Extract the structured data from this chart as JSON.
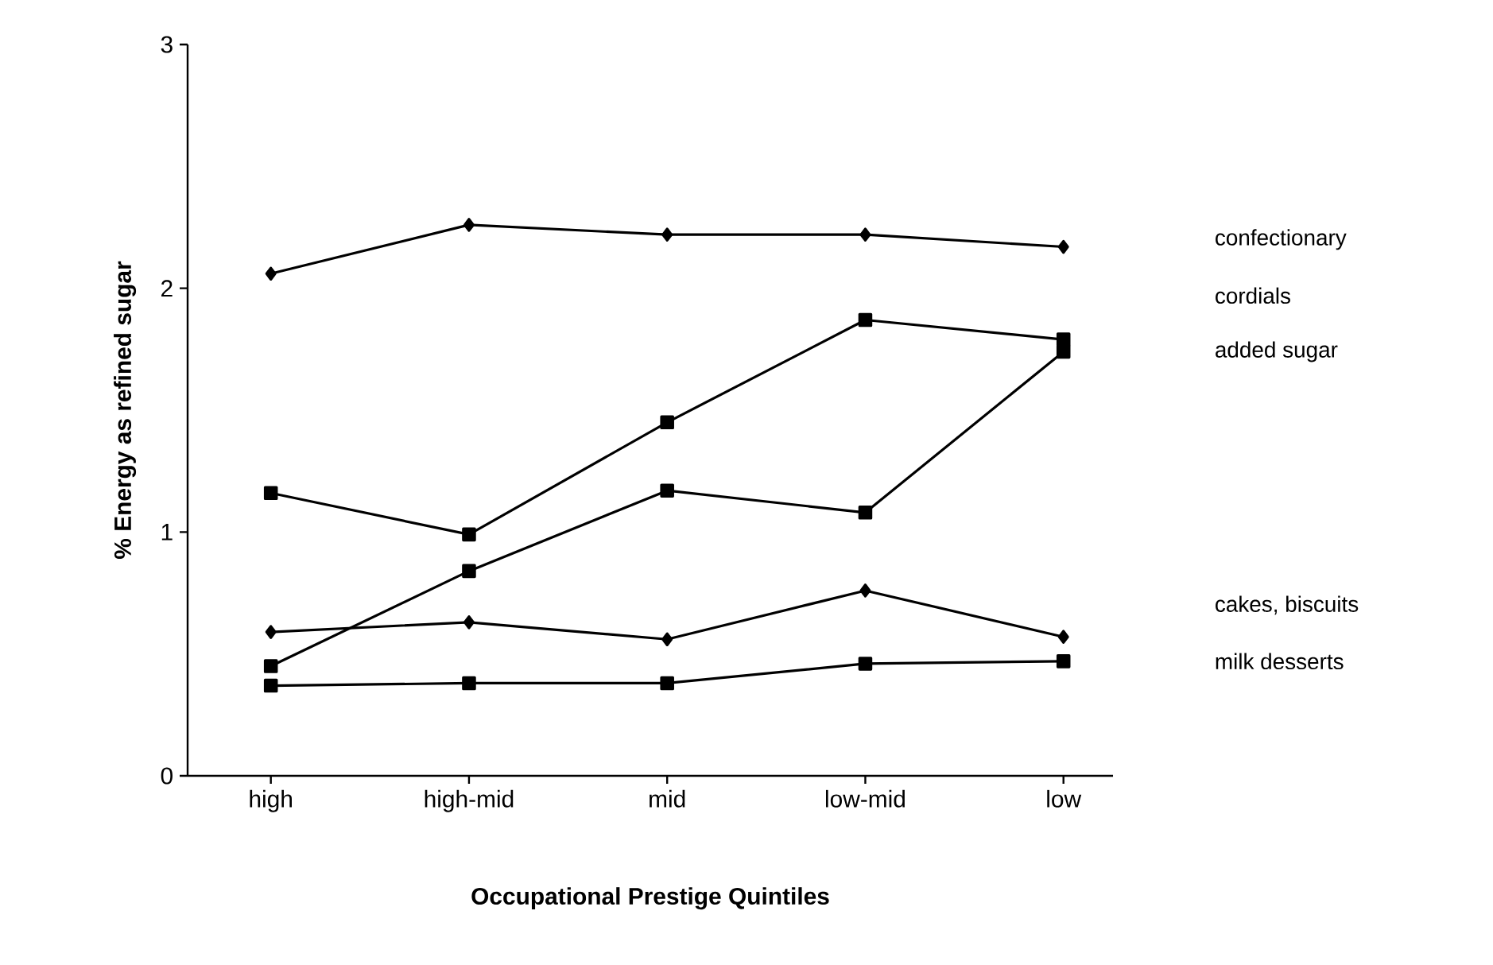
{
  "chart_data": {
    "type": "line",
    "xlabel": "Occupational Prestige Quintiles",
    "ylabel": "% Energy as refined sugar",
    "categories": [
      "high",
      "high-mid",
      "mid",
      "low-mid",
      "low"
    ],
    "ylim": [
      0,
      3
    ],
    "yticks": [
      0,
      1,
      2,
      3
    ],
    "grid": false,
    "series": [
      {
        "name": "confectionary",
        "color": "#000000",
        "marker": "diamond",
        "values": [
          2.06,
          2.26,
          2.22,
          2.22,
          2.17
        ]
      },
      {
        "name": "cordials",
        "color": "#000000",
        "marker": "square",
        "values": [
          1.16,
          0.99,
          1.45,
          1.87,
          1.79
        ]
      },
      {
        "name": "added sugar",
        "color": "#000000",
        "marker": "square",
        "values": [
          0.45,
          0.84,
          1.17,
          1.08,
          1.74
        ]
      },
      {
        "name": "cakes, biscuits",
        "color": "#000000",
        "marker": "diamond",
        "values": [
          0.59,
          0.63,
          0.56,
          0.76,
          0.57
        ]
      },
      {
        "name": "milk desserts",
        "color": "#000000",
        "marker": "square",
        "values": [
          0.37,
          0.38,
          0.38,
          0.46,
          0.47
        ]
      }
    ]
  }
}
